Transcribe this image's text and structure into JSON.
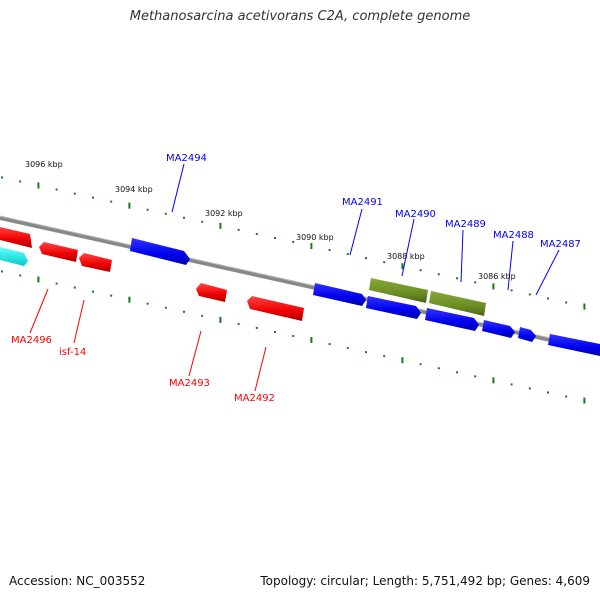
{
  "title": "Methanosarcina acetivorans C2A, complete genome",
  "footer": {
    "accession": "Accession: NC_003552",
    "topology": "Topology: circular; Length: 5,751,492 bp; Genes: 4,609"
  },
  "colors": {
    "forward": "#0000ff",
    "reverse": "#ff0000",
    "other": "#6b8e23",
    "cyan": "#00ffff",
    "backbone": "#888888",
    "ticks": "#1a7a1a"
  },
  "ticks": [
    "3096 kbp",
    "3094 kbp",
    "3092 kbp",
    "3090 kbp",
    "3088 kbp",
    "3086 kbp"
  ],
  "genes": {
    "forward": [
      "MA2494",
      "MA2491",
      "MA2490",
      "MA2489",
      "MA2488",
      "MA2487"
    ],
    "reverse": [
      "MA2496",
      "isf-14",
      "MA2493",
      "MA2492"
    ]
  }
}
